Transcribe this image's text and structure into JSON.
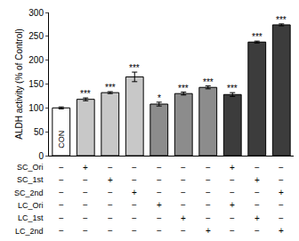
{
  "chart_data": {
    "type": "bar",
    "y_label": "ALDH activity (% of Control)",
    "categories": [
      null,
      null,
      null,
      null,
      null,
      null,
      null,
      null,
      null,
      null
    ],
    "values": [
      100,
      118,
      132,
      165,
      108,
      130,
      143,
      128,
      238,
      274
    ],
    "errors": [
      2,
      3,
      2,
      10,
      4,
      3,
      3,
      4,
      2,
      2
    ],
    "colors": [
      "#ffffff",
      "#c8c8c8",
      "#c8c8c8",
      "#c8c8c8",
      "#8c8c8c",
      "#8c8c8c",
      "#8c8c8c",
      "#3c3c3c",
      "#3c3c3c",
      "#3c3c3c"
    ],
    "significance": [
      null,
      "***",
      "***",
      "***",
      "*",
      "***",
      "***",
      "***",
      "***",
      "***"
    ],
    "annotations": [
      {
        "x": 0,
        "text": "CON"
      }
    ],
    "ylim": [
      0,
      300
    ],
    "yticks": [
      0,
      50,
      100,
      150,
      200,
      250,
      300
    ],
    "grid": false,
    "tick_labels": "y",
    "conditions": [
      {
        "label": "SC_Ori",
        "signs": [
          "−",
          "+",
          "−",
          "−",
          "−",
          "−",
          "−",
          "+",
          "−",
          "−"
        ]
      },
      {
        "label": "SC_1st",
        "signs": [
          "−",
          "−",
          "+",
          "−",
          "−",
          "−",
          "−",
          "−",
          "+",
          "−"
        ]
      },
      {
        "label": "SC_2nd",
        "signs": [
          "−",
          "−",
          "−",
          "+",
          "−",
          "−",
          "−",
          "−",
          "−",
          "+"
        ]
      },
      {
        "label": "LC_Ori",
        "signs": [
          "−",
          "−",
          "−",
          "−",
          "+",
          "−",
          "−",
          "+",
          "−",
          "−"
        ]
      },
      {
        "label": "LC_1st",
        "signs": [
          "−",
          "−",
          "−",
          "−",
          "−",
          "+",
          "−",
          "−",
          "+",
          "−"
        ]
      },
      {
        "label": "LC_2nd",
        "signs": [
          "−",
          "−",
          "−",
          "−",
          "−",
          "−",
          "+",
          "−",
          "−",
          "+"
        ]
      }
    ]
  }
}
